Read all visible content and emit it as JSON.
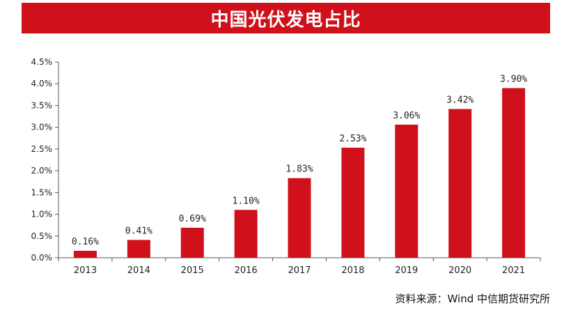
{
  "title": "中国光伏发电占比",
  "source": "资料来源：Wind 中信期货研究所",
  "colors": {
    "bar": "#d0111c",
    "title_bg": "#d0111c",
    "axis": "#555555",
    "text": "#222222"
  },
  "chart_data": {
    "type": "bar",
    "title": "中国光伏发电占比",
    "xlabel": "",
    "ylabel": "",
    "categories": [
      "2013",
      "2014",
      "2015",
      "2016",
      "2017",
      "2018",
      "2019",
      "2020",
      "2021"
    ],
    "values": [
      0.16,
      0.41,
      0.69,
      1.1,
      1.83,
      2.53,
      3.06,
      3.42,
      3.9
    ],
    "data_labels": [
      "0.16%",
      "0.41%",
      "0.69%",
      "1.10%",
      "1.83%",
      "2.53%",
      "3.06%",
      "3.42%",
      "3.90%"
    ],
    "ylim": [
      0,
      4.5
    ],
    "yticks": [
      0,
      0.5,
      1.0,
      1.5,
      2.0,
      2.5,
      3.0,
      3.5,
      4.0,
      4.5
    ],
    "ytick_labels": [
      "0.0%",
      "0.5%",
      "1.0%",
      "1.5%",
      "2.0%",
      "2.5%",
      "3.0%",
      "3.5%",
      "4.0%",
      "4.5%"
    ],
    "grid": false,
    "legend": "none"
  }
}
